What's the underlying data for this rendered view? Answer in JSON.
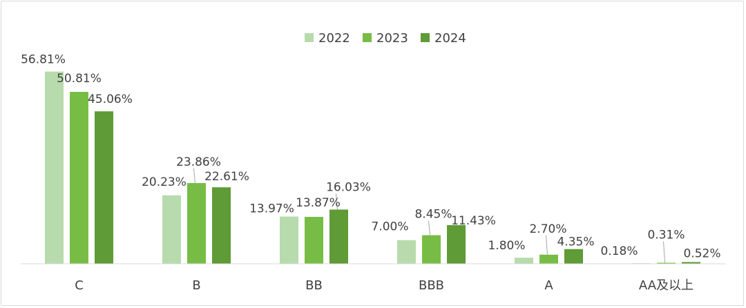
{
  "chart_data": {
    "type": "bar",
    "categories": [
      "C",
      "B",
      "BB",
      "BBB",
      "A",
      "AA及以上"
    ],
    "series": [
      {
        "name": "2022",
        "values": [
          56.81,
          20.23,
          13.97,
          7.0,
          1.8,
          0.18
        ],
        "labels": [
          "56.81%",
          "20.23%",
          "13.97%",
          "7.00%",
          "1.80%",
          "0.18%"
        ]
      },
      {
        "name": "2023",
        "values": [
          50.81,
          23.86,
          13.87,
          8.45,
          2.7,
          0.31
        ],
        "labels": [
          "50.81%",
          "23.86%",
          "13.87%",
          "8.45%",
          "2.70%",
          "0.31%"
        ]
      },
      {
        "name": "2024",
        "values": [
          45.06,
          22.61,
          16.03,
          11.43,
          4.35,
          0.52
        ],
        "labels": [
          "45.06%",
          "22.61%",
          "16.03%",
          "11.43%",
          "4.35%",
          "0.52%"
        ]
      }
    ],
    "title": "",
    "xlabel": "",
    "ylabel": "",
    "ylim": [
      0,
      60
    ],
    "grid": false,
    "legend": "top",
    "colors": {
      "2022": "#b7dbad",
      "2023": "#77bd45",
      "2024": "#5f9b36",
      "axis": "#d9d9d9",
      "text": "#404040",
      "leader": "#a6a6a6"
    }
  }
}
